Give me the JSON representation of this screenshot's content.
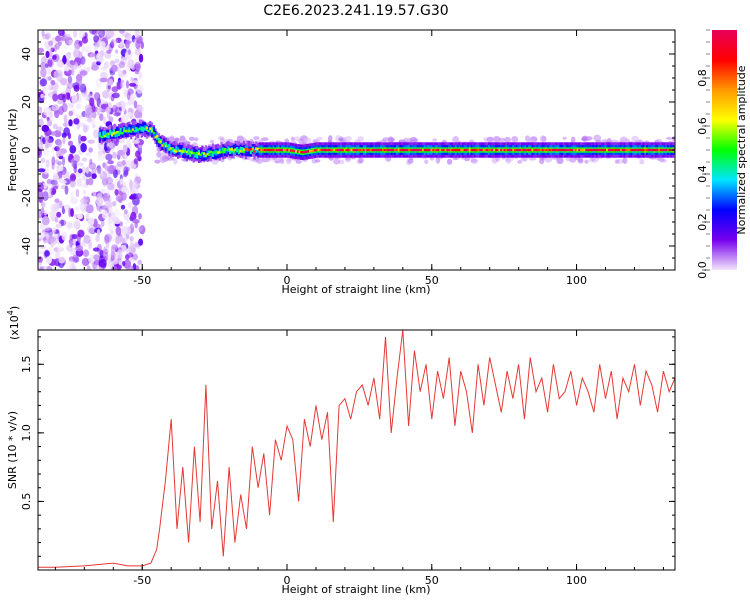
{
  "title": "C2E6.2023.241.19.57.G30",
  "chart_data": [
    {
      "type": "heatmap",
      "xlabel": "Height of straight line (km)",
      "ylabel": "Frequency (Hz)",
      "xlim": [
        -86,
        134
      ],
      "ylim": [
        -50,
        50
      ],
      "xticks": [
        -50,
        0,
        50,
        100
      ],
      "xtick_labels": [
        "-50",
        "0",
        "50",
        "100"
      ],
      "yticks": [
        -40,
        -20,
        0,
        20,
        40
      ],
      "ytick_labels": [
        "-40",
        "-20",
        "0",
        "20",
        "40"
      ],
      "colorbar": {
        "label": "Normalized spectral amplitude",
        "range": [
          0,
          1
        ],
        "ticks": [
          0.0,
          0.2,
          0.4,
          0.6,
          0.8
        ],
        "tick_labels": [
          "0.0",
          "0.2",
          "0.4",
          "0.6",
          "0.8"
        ],
        "colors": [
          "#f2e6fb",
          "#7700ee",
          "#0000ff",
          "#00e5ff",
          "#00ff00",
          "#ffff00",
          "#ff9900",
          "#ff0000",
          "#e8005a"
        ]
      },
      "ridge": [
        {
          "x": -65,
          "y": 6
        },
        {
          "x": -60,
          "y": 7
        },
        {
          "x": -55,
          "y": 8
        },
        {
          "x": -50,
          "y": 9
        },
        {
          "x": -47,
          "y": 8
        },
        {
          "x": -44,
          "y": 3
        },
        {
          "x": -40,
          "y": 0
        },
        {
          "x": -35,
          "y": -1
        },
        {
          "x": -30,
          "y": -2
        },
        {
          "x": -25,
          "y": -1
        },
        {
          "x": -20,
          "y": 0
        },
        {
          "x": -15,
          "y": 0
        },
        {
          "x": -10,
          "y": 0
        },
        {
          "x": 0,
          "y": 0
        },
        {
          "x": 5,
          "y": -1
        },
        {
          "x": 10,
          "y": 0
        },
        {
          "x": 50,
          "y": 0
        },
        {
          "x": 100,
          "y": 0
        },
        {
          "x": 133,
          "y": 0
        }
      ]
    },
    {
      "type": "line",
      "xlabel": "Height of straight line (km)",
      "ylabel": "SNR (10 * v/v)",
      "multiplier_label": "(x10",
      "multiplier_exponent": "4",
      "multiplier_close": ")",
      "xlim": [
        -86,
        134
      ],
      "ylim": [
        0,
        1.75
      ],
      "xticks": [
        -50,
        0,
        50,
        100
      ],
      "xtick_labels": [
        "-50",
        "0",
        "50",
        "100"
      ],
      "yticks": [
        0.5,
        1.0,
        1.5
      ],
      "ytick_labels": [
        "0.5",
        "1.0",
        "1.5"
      ],
      "series_color": "#e53935",
      "x": [
        -86,
        -80,
        -70,
        -60,
        -55,
        -50,
        -47,
        -45,
        -44,
        -42,
        -40,
        -38,
        -36,
        -34,
        -32,
        -30,
        -28,
        -26,
        -24,
        -22,
        -20,
        -18,
        -16,
        -14,
        -12,
        -10,
        -8,
        -6,
        -4,
        -2,
        0,
        2,
        4,
        6,
        8,
        10,
        12,
        14,
        16,
        18,
        20,
        22,
        24,
        26,
        28,
        30,
        32,
        34,
        36,
        38,
        40,
        42,
        44,
        46,
        48,
        50,
        52,
        54,
        56,
        58,
        60,
        62,
        64,
        66,
        68,
        70,
        72,
        74,
        76,
        78,
        80,
        82,
        84,
        86,
        88,
        90,
        92,
        94,
        96,
        98,
        100,
        102,
        104,
        106,
        108,
        110,
        112,
        114,
        116,
        118,
        120,
        122,
        124,
        126,
        128,
        130,
        132,
        134
      ],
      "y": [
        0.02,
        0.02,
        0.03,
        0.05,
        0.03,
        0.03,
        0.05,
        0.15,
        0.3,
        0.65,
        1.1,
        0.3,
        0.75,
        0.2,
        0.9,
        0.35,
        1.35,
        0.3,
        0.65,
        0.1,
        0.75,
        0.2,
        0.55,
        0.3,
        0.9,
        0.6,
        0.85,
        0.4,
        0.95,
        0.8,
        1.05,
        0.95,
        0.5,
        1.1,
        0.9,
        1.2,
        0.95,
        1.15,
        0.35,
        1.2,
        1.25,
        1.1,
        1.3,
        1.35,
        1.2,
        1.4,
        1.1,
        1.7,
        1.0,
        1.4,
        1.75,
        1.05,
        1.6,
        1.3,
        1.5,
        1.1,
        1.45,
        1.25,
        1.55,
        1.05,
        1.45,
        1.3,
        1.0,
        1.5,
        1.2,
        1.55,
        1.35,
        1.15,
        1.45,
        1.25,
        1.5,
        1.1,
        1.55,
        1.3,
        1.4,
        1.15,
        1.5,
        1.25,
        1.3,
        1.45,
        1.2,
        1.4,
        1.3,
        1.15,
        1.5,
        1.25,
        1.45,
        1.1,
        1.4,
        1.3,
        1.5,
        1.2,
        1.45,
        1.35,
        1.15,
        1.45,
        1.3,
        1.4
      ]
    }
  ]
}
